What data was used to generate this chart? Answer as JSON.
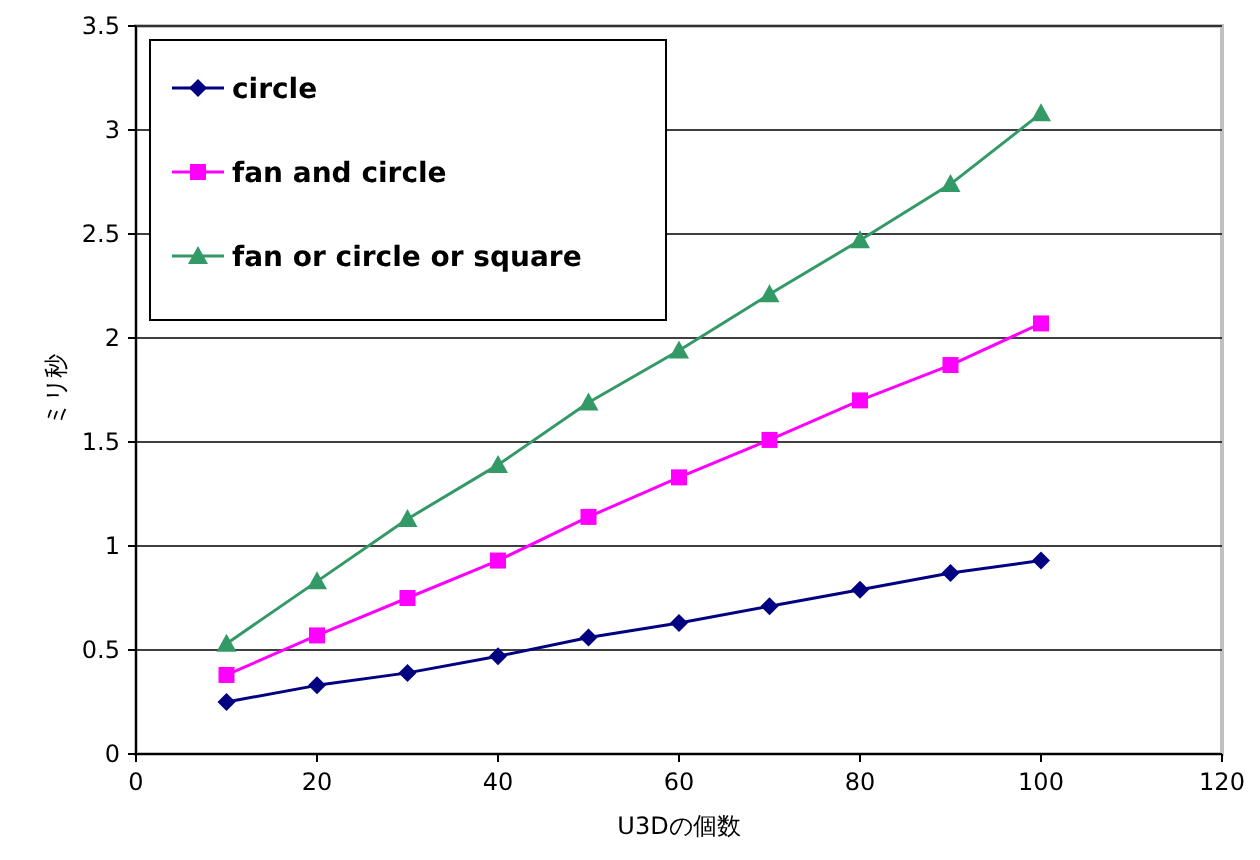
{
  "chart_data": {
    "type": "line",
    "xlabel": "U3Dの個数",
    "ylabel": "ミリ秒",
    "x": [
      10,
      20,
      30,
      40,
      50,
      60,
      70,
      80,
      90,
      100
    ],
    "series": [
      {
        "name": "circle",
        "color": "#000080",
        "marker": "diamond",
        "values": [
          0.25,
          0.33,
          0.39,
          0.47,
          0.56,
          0.63,
          0.71,
          0.79,
          0.87,
          0.93
        ]
      },
      {
        "name": "fan and circle",
        "color": "#ff00ff",
        "marker": "square",
        "values": [
          0.38,
          0.57,
          0.75,
          0.93,
          1.14,
          1.33,
          1.51,
          1.7,
          1.87,
          2.07
        ]
      },
      {
        "name": "fan or circle or square",
        "color": "#339966",
        "marker": "triangle",
        "values": [
          0.53,
          0.83,
          1.13,
          1.39,
          1.69,
          1.94,
          2.21,
          2.47,
          2.74,
          3.08
        ]
      }
    ],
    "xlim": [
      0,
      120
    ],
    "xticks": [
      0,
      20,
      40,
      60,
      80,
      100,
      120
    ],
    "ylim": [
      0,
      3.5
    ],
    "yticks": [
      0,
      0.5,
      1,
      1.5,
      2,
      2.5,
      3,
      3.5
    ],
    "grid": "y",
    "legend": "top left",
    "line_style": "solid"
  }
}
